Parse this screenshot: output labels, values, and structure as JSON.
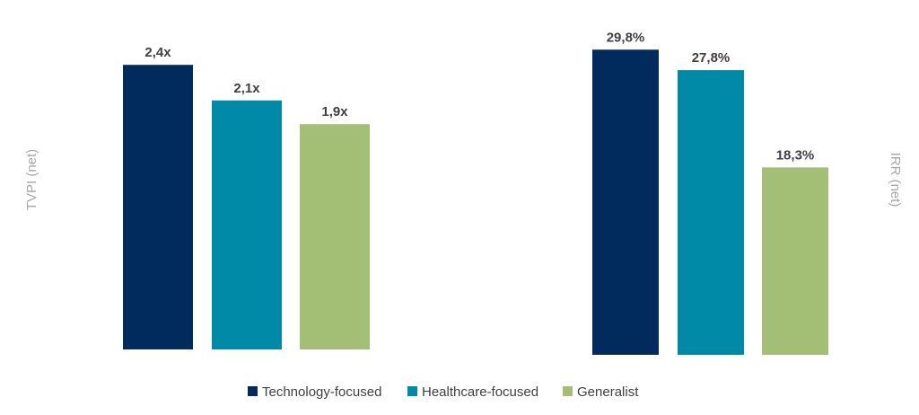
{
  "chart_data": [
    {
      "type": "bar",
      "ylabel": "TVPI (net)",
      "ylabel_side": "left",
      "categories": [
        "Technology-focused",
        "Healthcare-focused",
        "Generalist"
      ],
      "values": [
        2.4,
        2.1,
        1.9
      ],
      "value_labels": [
        "2,4x",
        "2,1x",
        "1,9x"
      ],
      "ylim": [
        0,
        2.5
      ],
      "grid": false
    },
    {
      "type": "bar",
      "ylabel": "IRR (net)",
      "ylabel_side": "right",
      "categories": [
        "Technology-focused",
        "Healthcare-focused",
        "Generalist"
      ],
      "values": [
        29.8,
        27.8,
        18.3
      ],
      "value_labels": [
        "29,8%",
        "27,8%",
        "18,3%"
      ],
      "ylim": [
        0,
        30
      ],
      "grid": false
    }
  ],
  "legend": {
    "placement": "bottom",
    "items": [
      {
        "label": "Technology-focused",
        "color": "#002b5c"
      },
      {
        "label": "Healthcare-focused",
        "color": "#008aa8"
      },
      {
        "label": "Generalist",
        "color": "#a3be75"
      }
    ]
  }
}
